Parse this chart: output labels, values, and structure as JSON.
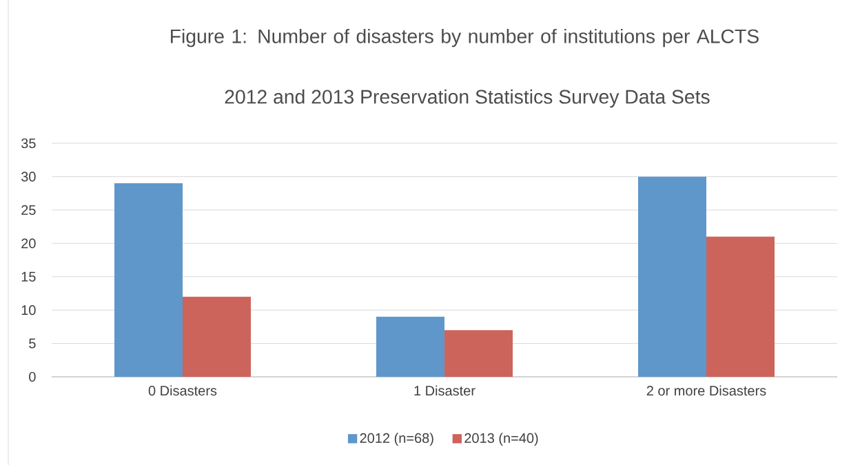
{
  "chart_data": {
    "type": "bar",
    "title": "Figure 1: Number of disasters by number of institutions per ALCTS",
    "subtitle": "2012 and 2013 Preservation Statistics Survey Data Sets",
    "categories": [
      "0 Disasters",
      "1 Disaster",
      "2 or more Disasters"
    ],
    "series": [
      {
        "name": "2012 (n=68)",
        "color": "#5f97cb",
        "values": [
          29,
          9,
          30
        ]
      },
      {
        "name": "2013 (n=40)",
        "color": "#cc645c",
        "values": [
          12,
          7,
          21
        ]
      }
    ],
    "ylim": [
      0,
      35
    ],
    "yticks": [
      0,
      5,
      10,
      15,
      20,
      25,
      30,
      35
    ],
    "grid": "y",
    "legend": "bottom"
  }
}
